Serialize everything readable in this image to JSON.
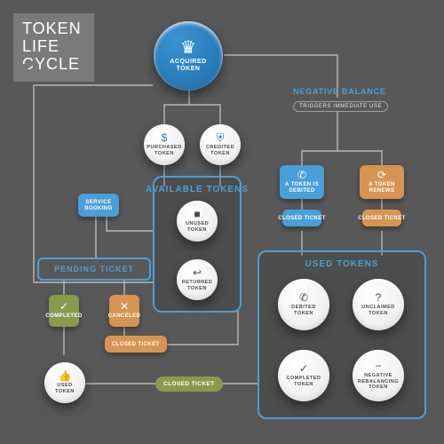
{
  "colors": {
    "bg": "#585858",
    "blue": "#2b7fbd",
    "blue_light": "#4a9fd8",
    "orange": "#d89452",
    "olive": "#8a9a4d",
    "white": "#eeeeee",
    "grey_panel": "#707070"
  },
  "title": {
    "line1": "TOKEN",
    "line2": "LIFE",
    "line3": "CYCLE"
  },
  "negative_balance": {
    "title": "NEGATIVE BALANCE",
    "sub": "TRIGGERS IMMEDIATE USE"
  },
  "panels": {
    "available": {
      "title": "AVAILABLE TOKENS"
    },
    "used": {
      "title": "USED TOKENS"
    }
  },
  "bars": {
    "pending": "PENDING TICKET"
  },
  "chips": {
    "service_booking": "SERVICE\nBOOKING",
    "completed": "COMPLETED",
    "canceled": "CANCELED",
    "closed_ticket": "CLOSED TICKET",
    "token_debited": "A TOKEN IS\nDEBITED",
    "token_renews": "A TOKEN\nRENEWS"
  },
  "coins": {
    "acquired": "ACQUIRED\nTOKEN",
    "purchased": "PURCHASED\nTOKEN",
    "credited": "CREDITED\nTOKEN",
    "unused": "UNUSED\nTOKEN",
    "returned": "RETURNED\nTOKEN",
    "used": "USED\nTOKEN",
    "debited": "DEBITED\nTOKEN",
    "unclaimed": "UNCLAIMED\nTOKEN",
    "completed": "COMPLETED\nTOKEN",
    "neg_rebalance": "NEGATIVE\nREBALANCING\nTOKEN"
  }
}
